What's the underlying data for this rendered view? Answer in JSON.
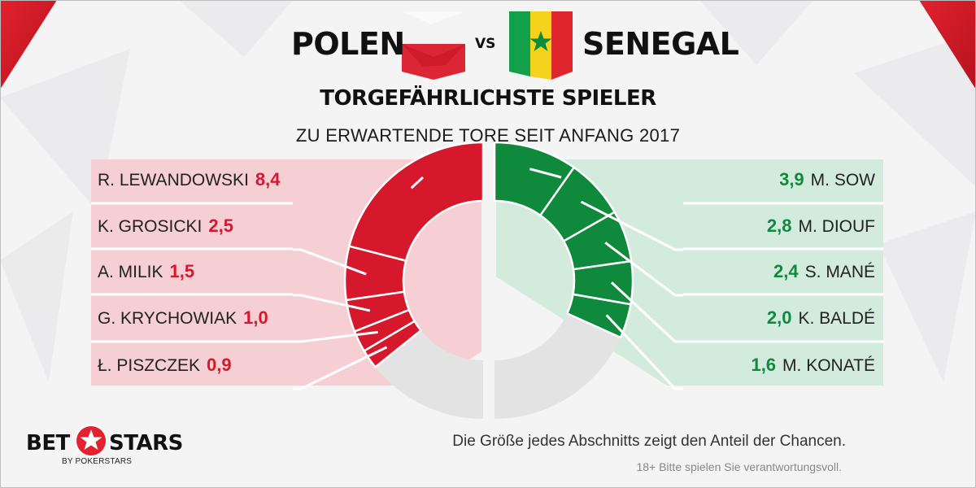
{
  "header": {
    "team_left": "POLEN",
    "vs": "VS",
    "team_right": "SENEGAL"
  },
  "chart_data": {
    "type": "pie",
    "title": "TORGEFÄHRLICHSTE SPIELER",
    "subtitle": "ZU ERWARTENDE TORE SEIT ANFANG 2017",
    "series": [
      {
        "name": "POLEN",
        "color": "#d5182b",
        "players": [
          {
            "label": "R. LEWANDOWSKI",
            "value": 8.4,
            "value_text": "8,4"
          },
          {
            "label": "K. GROSICKI",
            "value": 2.5,
            "value_text": "2,5"
          },
          {
            "label": "A. MILIK",
            "value": 1.5,
            "value_text": "1,5"
          },
          {
            "label": "G. KRYCHOWIAK",
            "value": 1.0,
            "value_text": "1,0"
          },
          {
            "label": "Ł. PISZCZEK",
            "value": 0.9,
            "value_text": "0,9"
          }
        ]
      },
      {
        "name": "SENEGAL",
        "color": "#0f8a3c",
        "players": [
          {
            "label": "M. SOW",
            "value": 3.9,
            "value_text": "3,9"
          },
          {
            "label": "M. DIOUF",
            "value": 2.8,
            "value_text": "2,8"
          },
          {
            "label": "S. MANÉ",
            "value": 2.4,
            "value_text": "2,4"
          },
          {
            "label": "K. BALDÉ",
            "value": 2.0,
            "value_text": "2,0"
          },
          {
            "label": "M. KONATÉ",
            "value": 1.6,
            "value_text": "1,6"
          }
        ]
      }
    ],
    "total_scale": 20
  },
  "footer": {
    "note": "Die Größe jedes Abschnitts zeigt den Anteil der Chancen.",
    "disclaimer": "18+ Bitte spielen Sie verantwortungsvoll.",
    "logo_bet": "BET",
    "logo_stars": "STARS",
    "logo_sub": "BY POKERSTARS"
  }
}
